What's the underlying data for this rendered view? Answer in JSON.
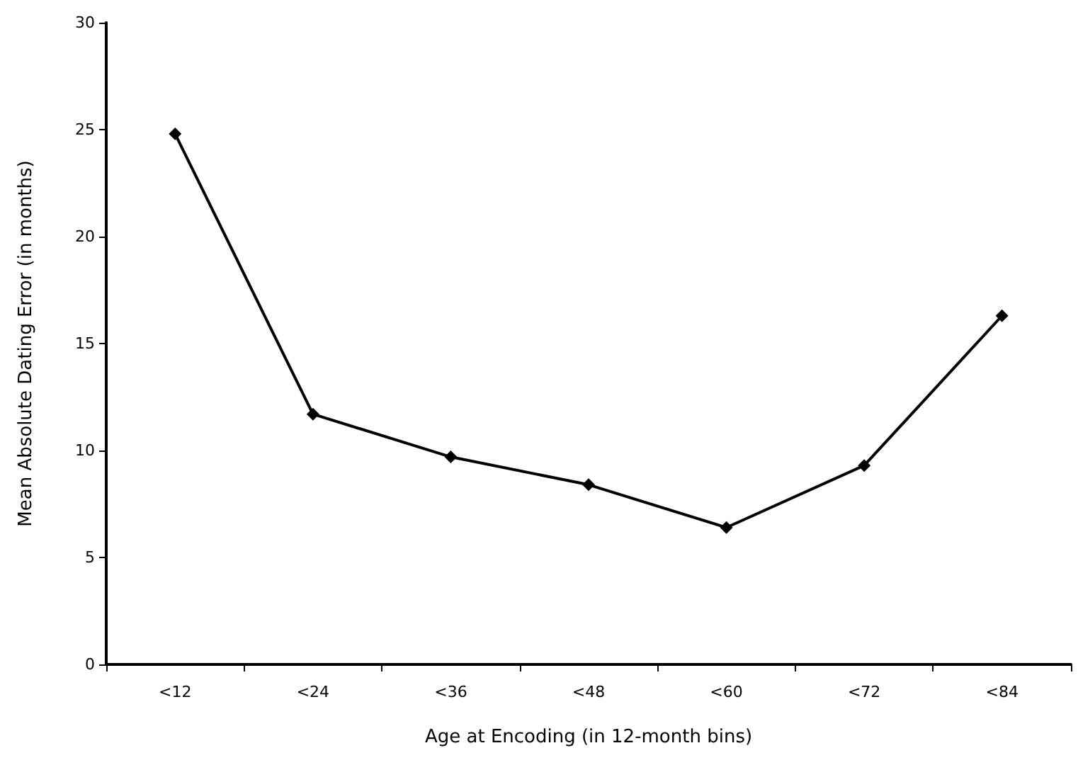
{
  "chart_data": {
    "type": "line",
    "xlabel": "Age at Encoding (in 12-month bins)",
    "ylabel": "Mean Absolute Dating Error (in months)",
    "categories": [
      "<12",
      "<24",
      "<36",
      "<48",
      "<60",
      "<72",
      "<84"
    ],
    "series": [
      {
        "color": "#000000",
        "values": [
          24.8,
          11.7,
          9.7,
          8.4,
          6.4,
          9.3,
          16.3
        ]
      }
    ],
    "ylim": [
      0,
      30
    ],
    "yticks": [
      0,
      5,
      10,
      15,
      20,
      25,
      30
    ],
    "grid": false,
    "marker": "diamond",
    "line_style": "solid"
  }
}
